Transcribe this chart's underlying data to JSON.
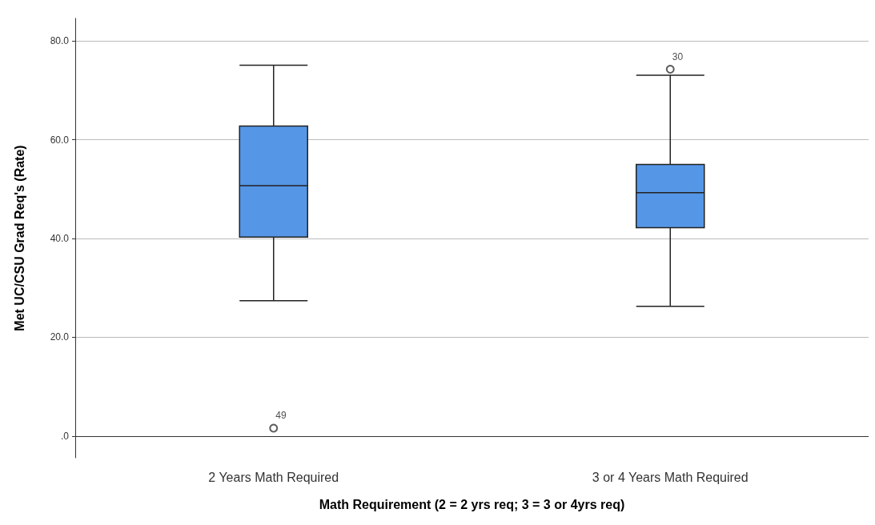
{
  "chart_data": {
    "type": "box",
    "xlabel": "Math Requirement (2 = 2 yrs req; 3 = 3 or 4yrs req)",
    "ylabel": "Met UC/CSU Grad Req's (Rate)",
    "categories": [
      "2 Years Math Required",
      "3 or 4 Years Math Required"
    ],
    "series": [
      {
        "color": "#5596e6",
        "boxes": [
          {
            "low": 27.4,
            "q1": 40.3,
            "median": 50.7,
            "q3": 62.8,
            "high": 75.1,
            "outliers": [
              1.6
            ]
          },
          {
            "low": 26.3,
            "q1": 42.2,
            "median": 49.3,
            "q3": 55.0,
            "high": 73.1,
            "outliers": [
              74.3
            ]
          }
        ]
      }
    ],
    "ylim": [
      -4.4,
      84.6
    ],
    "yticks": [
      {
        "value": 0,
        "label": ".0"
      },
      {
        "value": 20,
        "label": "20.0"
      },
      {
        "value": 40,
        "label": "40.0"
      },
      {
        "value": 60,
        "label": "60.0"
      },
      {
        "value": 80,
        "label": "80.0"
      }
    ],
    "grid": "y",
    "annotations": [
      "49",
      "30"
    ]
  }
}
